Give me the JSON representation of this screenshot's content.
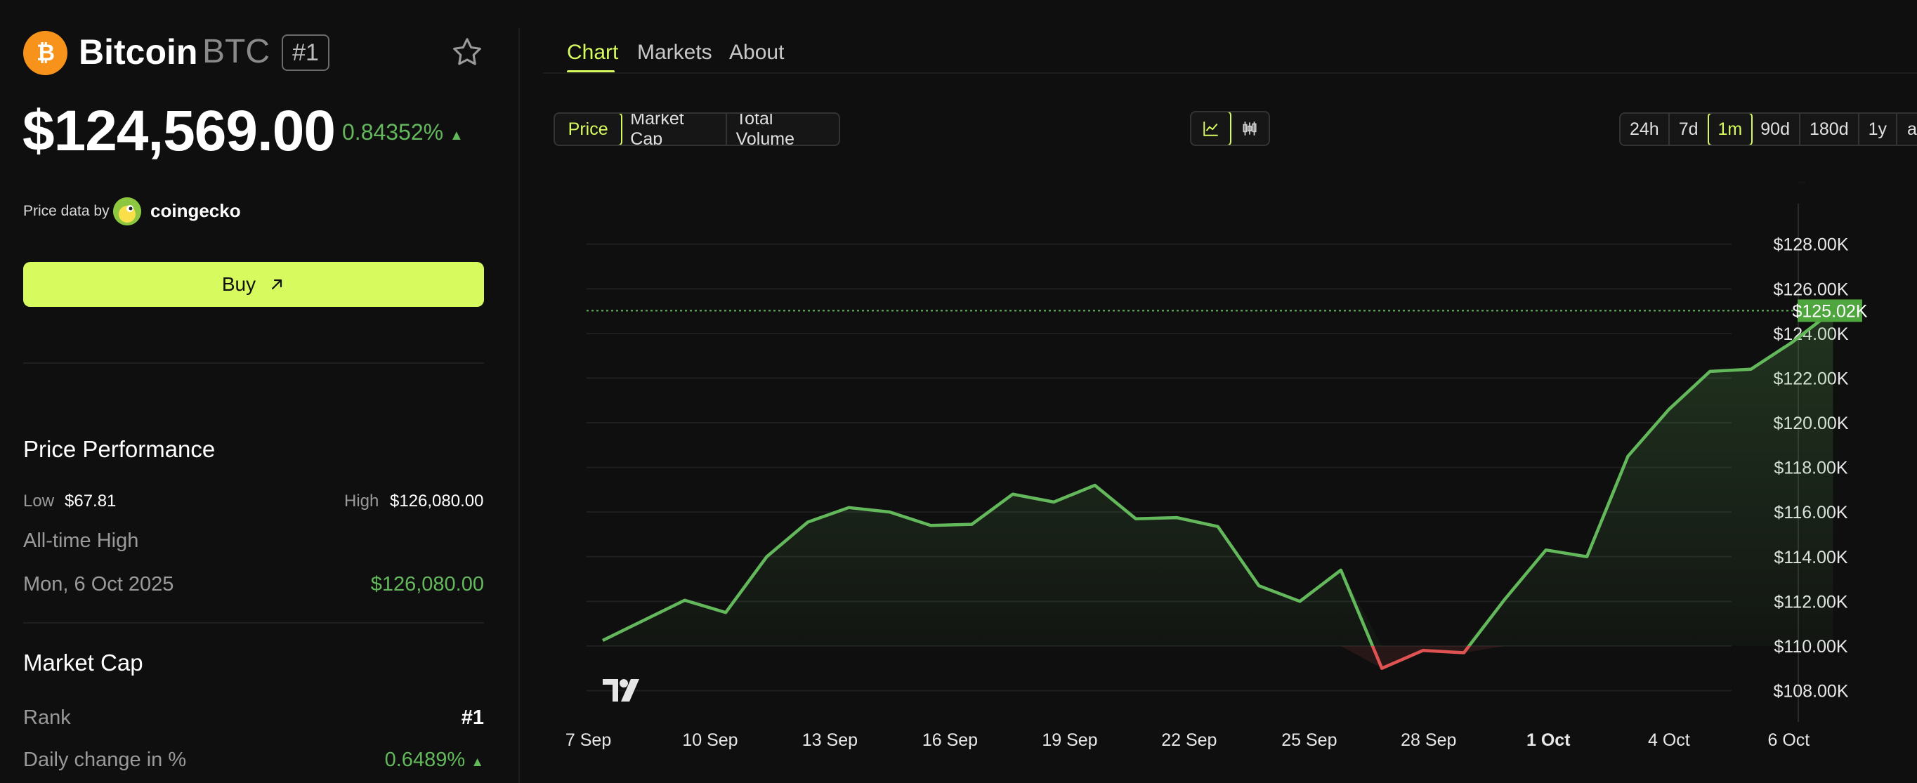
{
  "coin": {
    "name": "Bitcoin",
    "symbol": "BTC",
    "rank": "#1",
    "price": "$124,569.00",
    "change": "0.84352%",
    "change_arrow": "▲"
  },
  "price_source": {
    "label": "Price data by",
    "provider": "coingecko"
  },
  "buy_button": {
    "label": "Buy",
    "icon": "arrow-up-right-icon"
  },
  "performance": {
    "title": "Price Performance",
    "low_label": "Low",
    "low_value": "$67.81",
    "high_label": "High",
    "high_value": "$126,080.00",
    "ath_label": "All-time High",
    "ath_date": "Mon, 6 Oct 2025",
    "ath_value": "$126,080.00"
  },
  "market_cap": {
    "title": "Market Cap",
    "rank_label": "Rank",
    "rank_value": "#1",
    "daily_change_label": "Daily change in %",
    "daily_change_value": "0.6489%",
    "daily_change_arrow": "▲"
  },
  "tabs": [
    "Chart",
    "Markets",
    "About"
  ],
  "active_tab": "Chart",
  "metric_buttons": [
    "Price",
    "Market Cap",
    "Total Volume"
  ],
  "active_metric": "Price",
  "chart_types": [
    "line-chart-icon",
    "candlestick-icon"
  ],
  "ranges": [
    "24h",
    "7d",
    "1m",
    "90d",
    "180d",
    "1y",
    "a"
  ],
  "active_range": "1m",
  "colors": {
    "accent": "#d7fa5f",
    "up": "#63b85b",
    "down": "#e05353",
    "bg": "#0f0f0f"
  },
  "chart_data": {
    "type": "area",
    "x_tick_labels": [
      "7 Sep",
      "10 Sep",
      "13 Sep",
      "16 Sep",
      "19 Sep",
      "22 Sep",
      "25 Sep",
      "28 Sep",
      "1 Oct",
      "4 Oct",
      "6 Oct"
    ],
    "bold_tick": "1 Oct",
    "y_tick_labels": [
      "$128.00K",
      "$126.00K",
      "$124.00K",
      "$122.00K",
      "$120.00K",
      "$118.00K",
      "$116.00K",
      "$114.00K",
      "$112.00K",
      "$110.00K",
      "$108.00K"
    ],
    "y_ticks": [
      128000,
      126000,
      124000,
      122000,
      120000,
      118000,
      116000,
      114000,
      112000,
      110000,
      108000
    ],
    "ylim": [
      106600,
      129500
    ],
    "x_days": [
      0,
      1,
      2,
      3,
      4,
      5,
      6,
      7,
      8,
      9,
      10,
      11,
      12,
      13,
      14,
      15,
      16,
      17,
      18,
      19,
      20,
      21,
      22,
      23,
      24,
      25,
      26,
      27,
      28,
      29,
      30
    ],
    "values": [
      110250,
      111150,
      112050,
      111500,
      114000,
      115550,
      116200,
      116000,
      115400,
      115450,
      116800,
      116450,
      117200,
      115700,
      115750,
      115350,
      112700,
      112000,
      113400,
      109000,
      109800,
      109700,
      112100,
      114300,
      114000,
      118500,
      120600,
      122300,
      122400,
      123600,
      125020
    ],
    "tick_positions": [
      -0.35,
      2.62,
      5.54,
      8.47,
      11.39,
      14.3,
      17.23,
      20.14,
      23.06,
      26.0,
      28.92
    ],
    "current_label": "$125.02K",
    "current_value": 125020,
    "down_range_start": 110000
  }
}
